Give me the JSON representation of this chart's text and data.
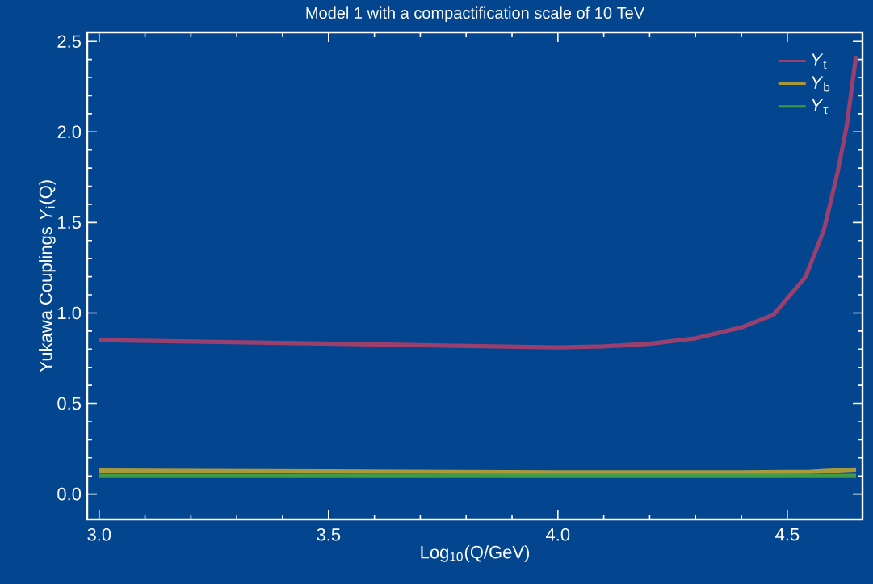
{
  "chart_data": {
    "type": "line",
    "title": "Model 1 with a compactification scale of 10 TeV",
    "xlabel": "Log$_{10}$(Q/GeV)",
    "ylabel": "Yukawa Couplings *Y*$_{i}$(Q)",
    "xlim": [
      2.974,
      4.664
    ],
    "ylim": [
      -0.14,
      2.55
    ],
    "xticks": [
      {
        "value": 3.0,
        "label": "3.0"
      },
      3.5,
      {
        "value": 4.0,
        "label": "4.0"
      },
      4.5
    ],
    "yticks": [
      {
        "value": 0,
        "label": "0.0"
      },
      0.5,
      {
        "value": 1,
        "label": "1.0"
      },
      1.5,
      {
        "value": 2,
        "label": "2.0"
      },
      2.5
    ],
    "grid": false,
    "legend": "top right",
    "marker": "none",
    "line_style": "solid",
    "series": [
      {
        "name": "*Y*$_{t}$",
        "color": "#9b3f6e",
        "x": [
          3.0,
          3.25,
          3.5,
          3.75,
          4.0,
          4.1,
          4.2,
          4.3,
          4.4,
          4.47,
          4.54,
          4.58,
          4.61,
          4.63,
          4.65
        ],
        "values": [
          0.85,
          0.84,
          0.83,
          0.82,
          0.81,
          0.815,
          0.83,
          0.86,
          0.92,
          0.99,
          1.2,
          1.46,
          1.78,
          2.04,
          2.42
        ]
      },
      {
        "name": "*Y*$_{b}$",
        "color": "#a89a3c",
        "x": [
          3.0,
          3.5,
          4.0,
          4.4,
          4.55,
          4.65
        ],
        "values": [
          0.13,
          0.125,
          0.12,
          0.12,
          0.123,
          0.135
        ]
      },
      {
        "name": "*Y*$_{τ}$",
        "color": "#3f9a4a",
        "x": [
          3.0,
          3.5,
          4.0,
          4.5,
          4.65
        ],
        "values": [
          0.1,
          0.1,
          0.1,
          0.1,
          0.1
        ]
      }
    ]
  }
}
